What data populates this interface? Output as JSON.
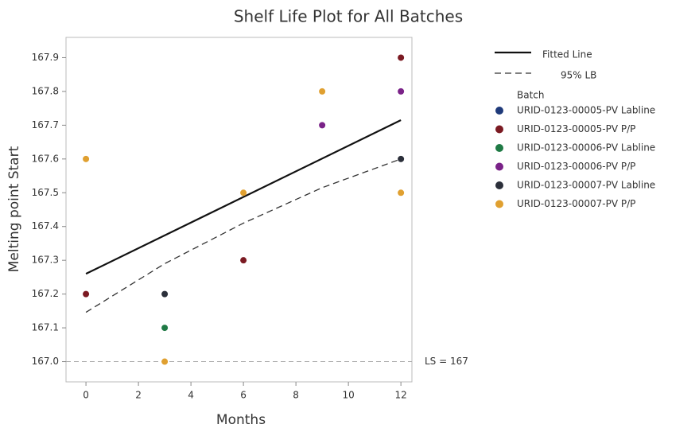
{
  "chart_data": {
    "type": "scatter",
    "title": "Shelf Life Plot for All Batches",
    "xlabel": "Months",
    "ylabel": "Melting point Start",
    "xlim": [
      -0.76,
      12.42
    ],
    "ylim": [
      166.94,
      167.96
    ],
    "xticks": [
      0,
      2,
      4,
      6,
      8,
      10,
      12
    ],
    "yticks": [
      {
        "value": 167,
        "label": "167.0"
      },
      167.1,
      167.2,
      167.3,
      167.4,
      167.5,
      167.6,
      167.7,
      167.8,
      167.9
    ],
    "legend_title": "Batch",
    "legend_position": "right",
    "series": [
      {
        "name": "URID-0123-00005-PV Labline",
        "color": "#1f3a7a",
        "x": [],
        "values": []
      },
      {
        "name": "URID-0123-00005-PV P/P",
        "color": "#7b1a22",
        "x": [
          0,
          6,
          12
        ],
        "values": [
          167.2,
          167.3,
          167.9
        ]
      },
      {
        "name": "URID-0123-00006-PV Labline",
        "color": "#1f7a45",
        "x": [
          3
        ],
        "values": [
          167.1
        ]
      },
      {
        "name": "URID-0123-00006-PV P/P",
        "color": "#7a2288",
        "x": [
          9,
          12
        ],
        "values": [
          167.7,
          167.8
        ]
      },
      {
        "name": "URID-0123-00007-PV Labline",
        "color": "#2b2f3a",
        "x": [
          3,
          12
        ],
        "values": [
          167.2,
          167.6
        ]
      },
      {
        "name": "URID-0123-00007-PV P/P",
        "color": "#e0a030",
        "x": [
          0,
          3,
          6,
          9,
          12
        ],
        "values": [
          167.6,
          167.0,
          167.5,
          167.8,
          167.5
        ]
      }
    ],
    "lines": [
      {
        "name": "Fitted Line",
        "color": "#111111",
        "dash": false,
        "x": [
          0,
          12
        ],
        "values": [
          167.26,
          167.715
        ]
      },
      {
        "name": "95% LB",
        "color": "#333333",
        "dash": true,
        "x": [
          0,
          3,
          6,
          9,
          12
        ],
        "values": [
          167.146,
          167.29,
          167.41,
          167.515,
          167.6
        ]
      }
    ],
    "reference_line": {
      "value": 167,
      "label": "LS = 167",
      "color": "#aaaaaa"
    }
  }
}
